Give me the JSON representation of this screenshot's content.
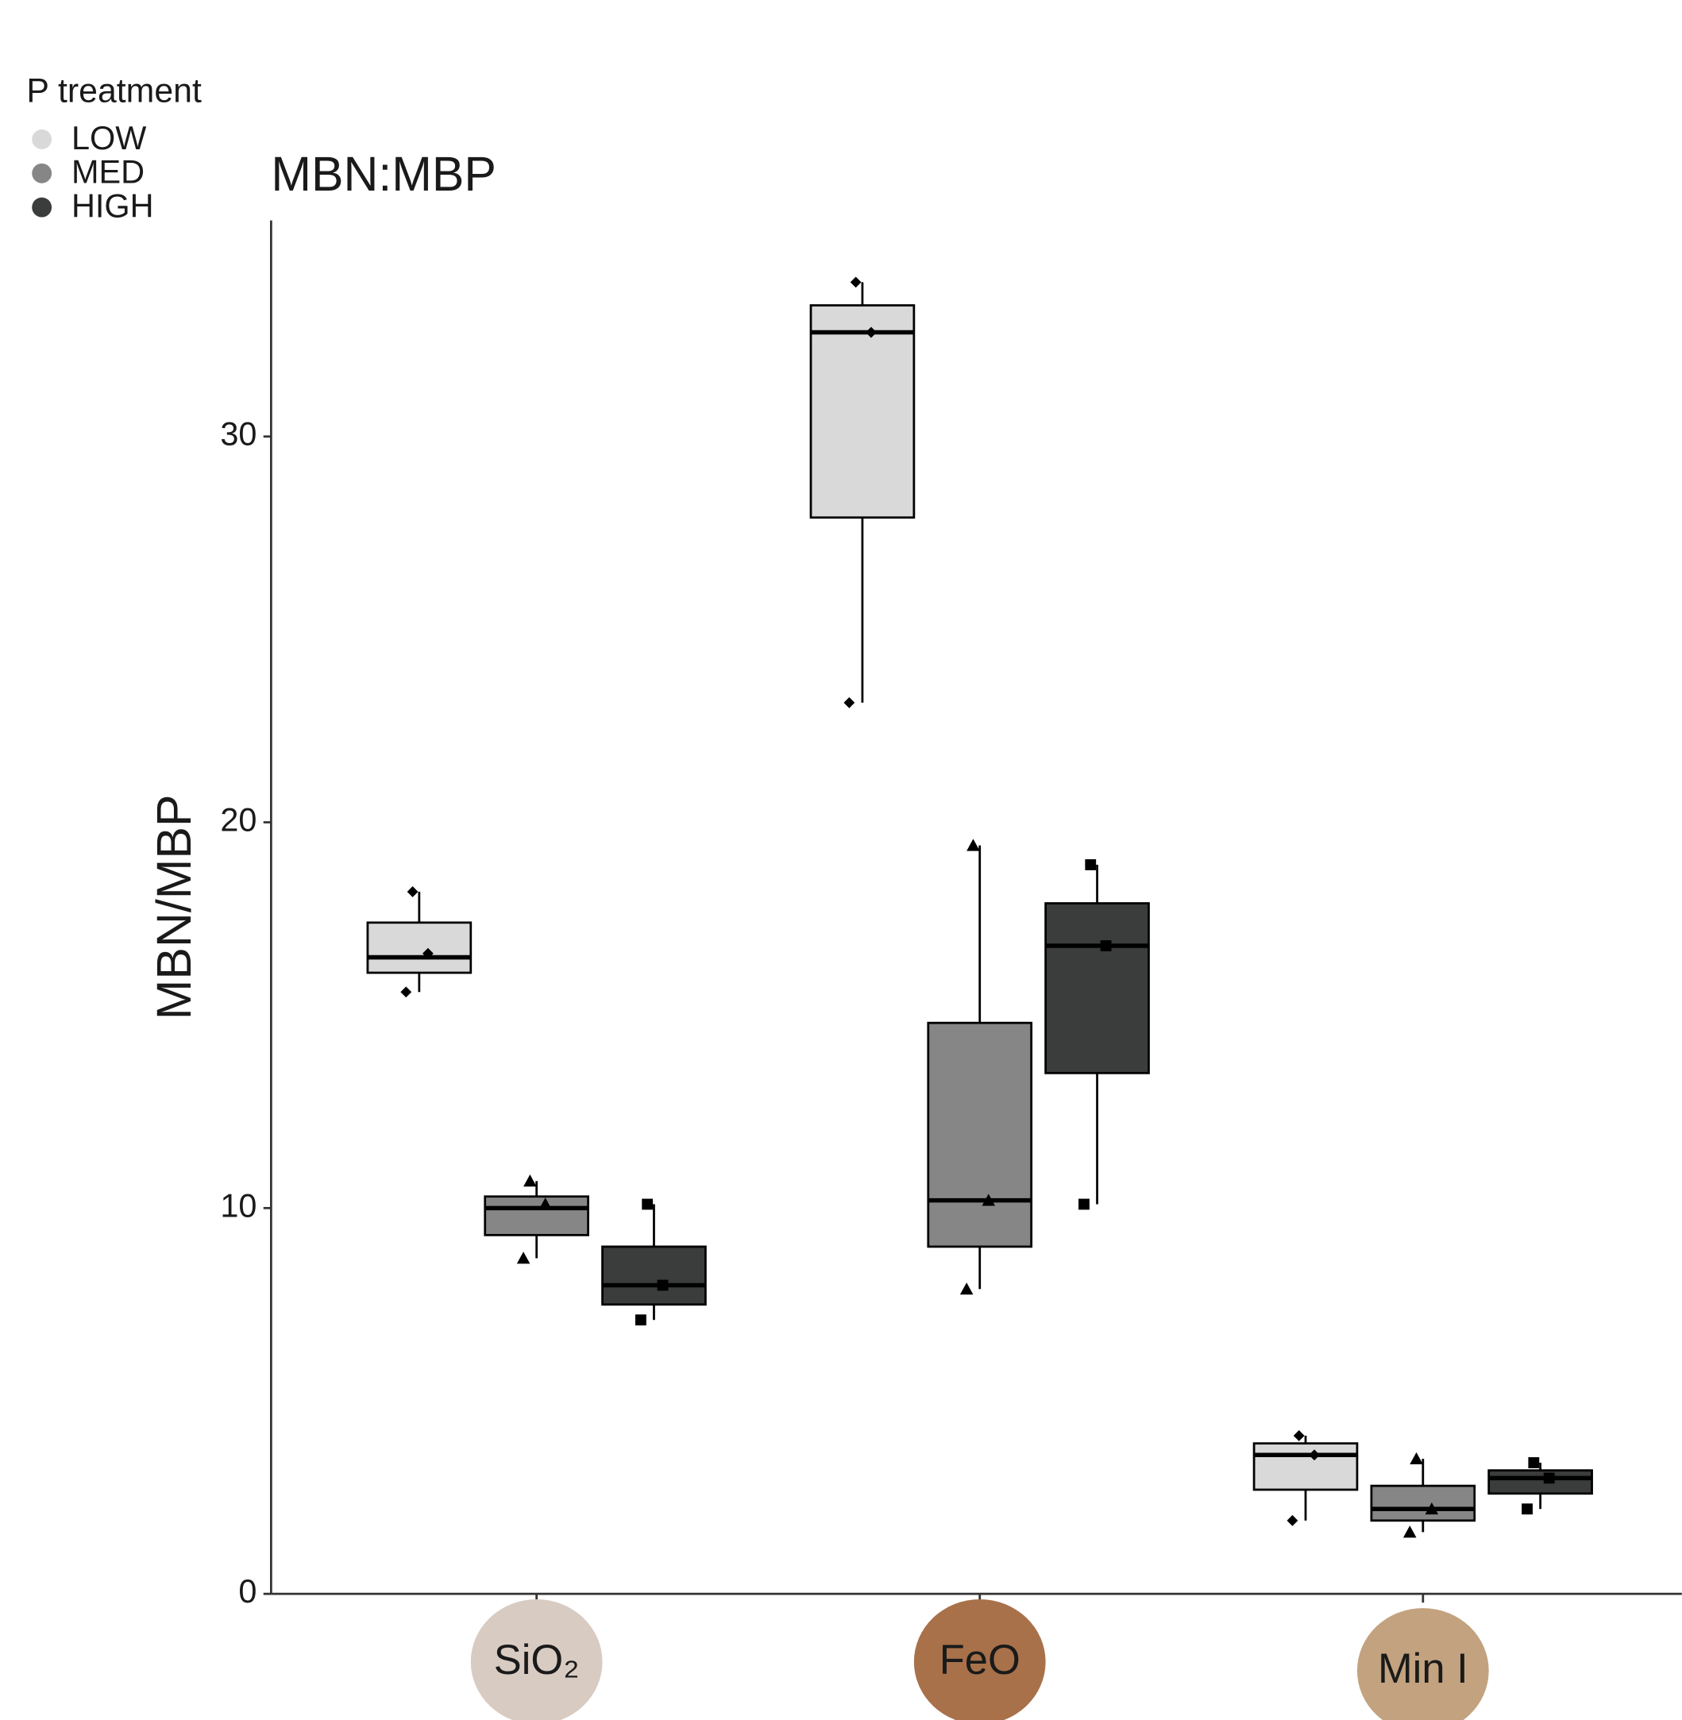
{
  "chart_data": {
    "type": "boxplot",
    "title": "MBN:MBP",
    "y_label": "MBN/MBP",
    "legend_title": "P treatment",
    "categories": [
      "SiO₂",
      "FeO",
      "Min I"
    ],
    "ylim": [
      0,
      35.6
    ],
    "yticks": [
      0,
      10,
      20,
      30
    ],
    "series": [
      {
        "name": "LOW",
        "color": "#d9d9d9",
        "shape": "diamond",
        "min": [
          15.6,
          23.1,
          1.9
        ],
        "q1": [
          16.1,
          27.9,
          2.7
        ],
        "median": [
          16.5,
          32.7,
          3.6
        ],
        "q3": [
          17.4,
          33.4,
          3.9
        ],
        "max": [
          18.2,
          34.0,
          4.1
        ],
        "points": [
          [
            18.2,
            16.6,
            15.6
          ],
          [
            34.0,
            32.7,
            23.1
          ],
          [
            4.1,
            3.6,
            1.9
          ]
        ]
      },
      {
        "name": "MED",
        "color": "#868686",
        "shape": "triangle",
        "min": [
          8.7,
          7.9,
          1.6
        ],
        "q1": [
          9.3,
          9.0,
          1.9
        ],
        "median": [
          10.0,
          10.2,
          2.2
        ],
        "q3": [
          10.3,
          14.8,
          2.8
        ],
        "max": [
          10.7,
          19.4,
          3.5
        ],
        "points": [
          [
            10.7,
            10.1,
            8.7
          ],
          [
            19.4,
            10.2,
            7.9
          ],
          [
            3.5,
            2.2,
            1.6
          ]
        ]
      },
      {
        "name": "HIGH",
        "color": "#3a3d3c",
        "shape": "square",
        "min": [
          7.1,
          10.1,
          2.2
        ],
        "q1": [
          7.5,
          13.5,
          2.6
        ],
        "median": [
          8.0,
          16.8,
          3.0
        ],
        "q3": [
          9.0,
          17.9,
          3.2
        ],
        "max": [
          10.1,
          18.9,
          3.4
        ],
        "points": [
          [
            10.1,
            8.0,
            7.1
          ],
          [
            18.9,
            16.8,
            10.1
          ],
          [
            3.4,
            3.0,
            2.2
          ]
        ]
      }
    ]
  }
}
